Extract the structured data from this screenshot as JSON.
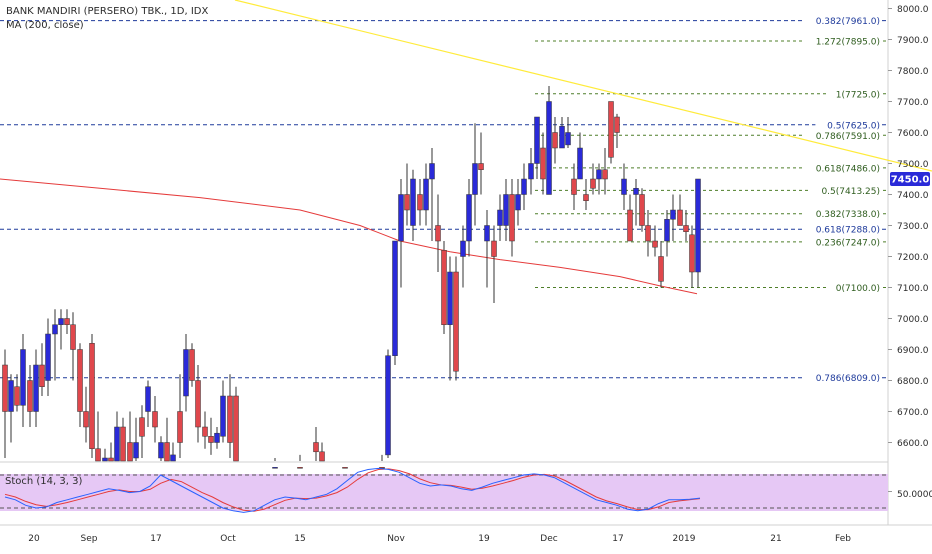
{
  "header": {
    "symbol_line": "BANK MANDIRI (PERSERO) TBK., 1D, IDX",
    "ma_line": "MA (200, close)"
  },
  "stoch": {
    "label": "Stoch (14, 3, 3)",
    "level_label": "50.0000",
    "range": [
      0,
      100
    ],
    "upper_band": 80,
    "lower_band": 20,
    "k": [
      40,
      35,
      25,
      20,
      22,
      30,
      35,
      40,
      45,
      50,
      55,
      52,
      48,
      50,
      60,
      80,
      70,
      60,
      50,
      40,
      30,
      20,
      15,
      12,
      15,
      25,
      35,
      40,
      38,
      35,
      40,
      45,
      55,
      70,
      85,
      90,
      92,
      90,
      85,
      75,
      65,
      60,
      62,
      60,
      55,
      52,
      58,
      65,
      70,
      75,
      80,
      82,
      80,
      75,
      65,
      55,
      45,
      35,
      30,
      25,
      18,
      15,
      18,
      28,
      35,
      35,
      36,
      38
    ],
    "d": [
      45,
      40,
      32,
      26,
      23,
      26,
      30,
      35,
      40,
      45,
      50,
      53,
      50,
      50,
      54,
      65,
      72,
      68,
      58,
      48,
      40,
      30,
      22,
      16,
      14,
      18,
      26,
      34,
      38,
      37,
      38,
      42,
      48,
      58,
      72,
      84,
      90,
      91,
      88,
      82,
      73,
      66,
      62,
      61,
      58,
      54,
      56,
      60,
      65,
      70,
      76,
      80,
      81,
      78,
      70,
      60,
      50,
      40,
      33,
      28,
      22,
      17,
      17,
      22,
      30,
      33,
      35,
      37
    ]
  },
  "chart_data": {
    "type": "candlestick",
    "title": "BANK MANDIRI (PERSERO) TBK., 1D, IDX",
    "indicator": "MA (200, close)",
    "ylim": [
      6500,
      8000
    ],
    "price_ticks": [
      "8000.0",
      "7900.0",
      "7800.0",
      "7700.0",
      "7600.0",
      "7500.0",
      "7400.0",
      "7300.0",
      "7200.0",
      "7100.0",
      "7000.0",
      "6900.0",
      "6800.0",
      "6700.0",
      "6600.0"
    ],
    "x_ticks": [
      "20",
      "Sep",
      "17",
      "Oct",
      "15",
      "Nov",
      "19",
      "Dec",
      "17",
      "2019",
      "21",
      "Feb"
    ],
    "last_price": "7450.0",
    "last_price_label": "7450.0",
    "fib_levels": [
      {
        "label": "0.382(7961.0)",
        "value": 7961,
        "style": "blue"
      },
      {
        "label": "1.272(7895.0)",
        "value": 7895,
        "style": "green"
      },
      {
        "label": "1(7725.0)",
        "value": 7725,
        "style": "green"
      },
      {
        "label": "0.5(7625.0)",
        "value": 7625,
        "style": "blue"
      },
      {
        "label": "0.786(7591.0)",
        "value": 7591,
        "style": "green"
      },
      {
        "label": "0.618(7486.0)",
        "value": 7486,
        "style": "green"
      },
      {
        "label": "0.5(7413.25)",
        "value": 7413.25,
        "style": "green"
      },
      {
        "label": "0.382(7338.0)",
        "value": 7338,
        "style": "green"
      },
      {
        "label": "0.618(7288.0)",
        "value": 7288,
        "style": "blue"
      },
      {
        "label": "0.236(7247.0)",
        "value": 7247,
        "style": "green"
      },
      {
        "label": "0(7100.0)",
        "value": 7100,
        "style": "green"
      },
      {
        "label": "0.786(6809.0)",
        "value": 6809,
        "style": "blue"
      }
    ],
    "trendline": {
      "from": [
        235,
        8000
      ],
      "to": [
        932,
        7450
      ]
    },
    "ma200": [
      [
        0,
        7450
      ],
      [
        100,
        7420
      ],
      [
        200,
        7390
      ],
      [
        300,
        7350
      ],
      [
        360,
        7300
      ],
      [
        400,
        7250
      ],
      [
        450,
        7215
      ],
      [
        500,
        7190
      ],
      [
        560,
        7165
      ],
      [
        620,
        7135
      ],
      [
        660,
        7105
      ],
      [
        697,
        7080
      ]
    ],
    "candles": [
      {
        "x": 5,
        "o": 6850,
        "h": 6900,
        "l": 6550,
        "c": 6700
      },
      {
        "x": 11,
        "o": 6700,
        "h": 6820,
        "l": 6600,
        "c": 6800
      },
      {
        "x": 17,
        "o": 6780,
        "h": 6820,
        "l": 6700,
        "c": 6720
      },
      {
        "x": 23,
        "o": 6720,
        "h": 6950,
        "l": 6650,
        "c": 6900
      },
      {
        "x": 30,
        "o": 6800,
        "h": 6850,
        "l": 6650,
        "c": 6700
      },
      {
        "x": 36,
        "o": 6700,
        "h": 6900,
        "l": 6650,
        "c": 6850
      },
      {
        "x": 42,
        "o": 6850,
        "h": 6920,
        "l": 6750,
        "c": 6780
      },
      {
        "x": 48,
        "o": 6800,
        "h": 7000,
        "l": 6750,
        "c": 6950
      },
      {
        "x": 55,
        "o": 6950,
        "h": 7030,
        "l": 6800,
        "c": 6980
      },
      {
        "x": 61,
        "o": 6980,
        "h": 7030,
        "l": 6900,
        "c": 7000
      },
      {
        "x": 67,
        "o": 7000,
        "h": 7030,
        "l": 6950,
        "c": 6980
      },
      {
        "x": 73,
        "o": 6980,
        "h": 7020,
        "l": 6800,
        "c": 6900
      },
      {
        "x": 80,
        "o": 6900,
        "h": 6920,
        "l": 6650,
        "c": 6700
      },
      {
        "x": 86,
        "o": 6700,
        "h": 6780,
        "l": 6600,
        "c": 6650
      },
      {
        "x": 92,
        "o": 6920,
        "h": 6950,
        "l": 6550,
        "c": 6580
      },
      {
        "x": 98,
        "o": 6580,
        "h": 6700,
        "l": 6500,
        "c": 6520
      },
      {
        "x": 105,
        "o": 6520,
        "h": 6580,
        "l": 6480,
        "c": 6550
      },
      {
        "x": 111,
        "o": 6550,
        "h": 6600,
        "l": 6450,
        "c": 6500
      },
      {
        "x": 117,
        "o": 6500,
        "h": 6700,
        "l": 6450,
        "c": 6650
      },
      {
        "x": 123,
        "o": 6650,
        "h": 6680,
        "l": 6450,
        "c": 6500
      },
      {
        "x": 130,
        "o": 6600,
        "h": 6700,
        "l": 6450,
        "c": 6500
      },
      {
        "x": 136,
        "o": 6550,
        "h": 6680,
        "l": 6500,
        "c": 6600
      },
      {
        "x": 142,
        "o": 6680,
        "h": 6720,
        "l": 6550,
        "c": 6620
      },
      {
        "x": 148,
        "o": 6700,
        "h": 6800,
        "l": 6650,
        "c": 6780
      },
      {
        "x": 155,
        "o": 6700,
        "h": 6750,
        "l": 6600,
        "c": 6650
      },
      {
        "x": 161,
        "o": 6550,
        "h": 6620,
        "l": 6480,
        "c": 6600
      },
      {
        "x": 167,
        "o": 6600,
        "h": 6680,
        "l": 6500,
        "c": 6520
      },
      {
        "x": 173,
        "o": 6520,
        "h": 6600,
        "l": 6480,
        "c": 6560
      },
      {
        "x": 180,
        "o": 6700,
        "h": 6820,
        "l": 6550,
        "c": 6600
      },
      {
        "x": 186,
        "o": 6750,
        "h": 6950,
        "l": 6700,
        "c": 6900
      },
      {
        "x": 192,
        "o": 6900,
        "h": 6920,
        "l": 6780,
        "c": 6800
      },
      {
        "x": 198,
        "o": 6800,
        "h": 6850,
        "l": 6600,
        "c": 6650
      },
      {
        "x": 205,
        "o": 6650,
        "h": 6700,
        "l": 6580,
        "c": 6620
      },
      {
        "x": 211,
        "o": 6620,
        "h": 6680,
        "l": 6560,
        "c": 6600
      },
      {
        "x": 217,
        "o": 6600,
        "h": 6650,
        "l": 6580,
        "c": 6630
      },
      {
        "x": 223,
        "o": 6620,
        "h": 6800,
        "l": 6600,
        "c": 6750
      },
      {
        "x": 230,
        "o": 6750,
        "h": 6820,
        "l": 6550,
        "c": 6600
      },
      {
        "x": 236,
        "o": 6750,
        "h": 6780,
        "l": 6480,
        "c": 6500
      },
      {
        "x": 275,
        "o": 6500,
        "h": 6550,
        "l": 6450,
        "c": 6520
      },
      {
        "x": 300,
        "o": 6520,
        "h": 6560,
        "l": 6480,
        "c": 6500
      },
      {
        "x": 316,
        "o": 6600,
        "h": 6650,
        "l": 6530,
        "c": 6570
      },
      {
        "x": 322,
        "o": 6570,
        "h": 6600,
        "l": 6500,
        "c": 6520
      },
      {
        "x": 345,
        "o": 6520,
        "h": 6540,
        "l": 6480,
        "c": 6500
      },
      {
        "x": 382,
        "o": 6520,
        "h": 6560,
        "l": 6480,
        "c": 6500
      },
      {
        "x": 388,
        "o": 6560,
        "h": 6900,
        "l": 6550,
        "c": 6880
      },
      {
        "x": 395,
        "o": 6880,
        "h": 7250,
        "l": 6850,
        "c": 7250
      },
      {
        "x": 401,
        "o": 7250,
        "h": 7450,
        "l": 7100,
        "c": 7400
      },
      {
        "x": 407,
        "o": 7400,
        "h": 7500,
        "l": 7300,
        "c": 7350
      },
      {
        "x": 413,
        "o": 7300,
        "h": 7480,
        "l": 7250,
        "c": 7450
      },
      {
        "x": 420,
        "o": 7400,
        "h": 7450,
        "l": 7300,
        "c": 7350
      },
      {
        "x": 426,
        "o": 7350,
        "h": 7500,
        "l": 7300,
        "c": 7450
      },
      {
        "x": 432,
        "o": 7450,
        "h": 7550,
        "l": 7250,
        "c": 7500
      },
      {
        "x": 438,
        "o": 7300,
        "h": 7400,
        "l": 7150,
        "c": 7250
      },
      {
        "x": 444,
        "o": 7220,
        "h": 7250,
        "l": 6950,
        "c": 6980
      },
      {
        "x": 450,
        "o": 6980,
        "h": 7200,
        "l": 6800,
        "c": 7150
      },
      {
        "x": 456,
        "o": 7150,
        "h": 7200,
        "l": 6800,
        "c": 6830
      },
      {
        "x": 463,
        "o": 7200,
        "h": 7300,
        "l": 7100,
        "c": 7250
      },
      {
        "x": 469,
        "o": 7250,
        "h": 7450,
        "l": 7200,
        "c": 7400
      },
      {
        "x": 475,
        "o": 7400,
        "h": 7630,
        "l": 7300,
        "c": 7500
      },
      {
        "x": 481,
        "o": 7500,
        "h": 7600,
        "l": 7400,
        "c": 7480
      },
      {
        "x": 487,
        "o": 7250,
        "h": 7350,
        "l": 7100,
        "c": 7300
      },
      {
        "x": 494,
        "o": 7250,
        "h": 7300,
        "l": 7050,
        "c": 7200
      },
      {
        "x": 500,
        "o": 7300,
        "h": 7400,
        "l": 7250,
        "c": 7350
      },
      {
        "x": 506,
        "o": 7300,
        "h": 7450,
        "l": 7250,
        "c": 7400
      },
      {
        "x": 512,
        "o": 7400,
        "h": 7450,
        "l": 7200,
        "c": 7250
      },
      {
        "x": 518,
        "o": 7350,
        "h": 7450,
        "l": 7300,
        "c": 7400
      },
      {
        "x": 524,
        "o": 7400,
        "h": 7500,
        "l": 7350,
        "c": 7450
      },
      {
        "x": 531,
        "o": 7450,
        "h": 7550,
        "l": 7400,
        "c": 7500
      },
      {
        "x": 537,
        "o": 7500,
        "h": 7650,
        "l": 7450,
        "c": 7650
      },
      {
        "x": 543,
        "o": 7550,
        "h": 7600,
        "l": 7400,
        "c": 7450
      },
      {
        "x": 549,
        "o": 7400,
        "h": 7750,
        "l": 7400,
        "c": 7700
      },
      {
        "x": 555,
        "o": 7600,
        "h": 7650,
        "l": 7500,
        "c": 7550
      },
      {
        "x": 562,
        "o": 7550,
        "h": 7650,
        "l": 7550,
        "c": 7620
      },
      {
        "x": 568,
        "o": 7560,
        "h": 7650,
        "l": 7550,
        "c": 7600
      },
      {
        "x": 574,
        "o": 7450,
        "h": 7500,
        "l": 7350,
        "c": 7400
      },
      {
        "x": 580,
        "o": 7450,
        "h": 7600,
        "l": 7450,
        "c": 7550
      },
      {
        "x": 586,
        "o": 7400,
        "h": 7450,
        "l": 7350,
        "c": 7380
      },
      {
        "x": 593,
        "o": 7450,
        "h": 7500,
        "l": 7400,
        "c": 7420
      },
      {
        "x": 599,
        "o": 7450,
        "h": 7500,
        "l": 7400,
        "c": 7480
      },
      {
        "x": 605,
        "o": 7480,
        "h": 7550,
        "l": 7400,
        "c": 7450
      },
      {
        "x": 611,
        "o": 7700,
        "h": 7700,
        "l": 7500,
        "c": 7520
      },
      {
        "x": 617,
        "o": 7650,
        "h": 7660,
        "l": 7550,
        "c": 7600
      },
      {
        "x": 624,
        "o": 7400,
        "h": 7500,
        "l": 7350,
        "c": 7450
      },
      {
        "x": 630,
        "o": 7350,
        "h": 7400,
        "l": 7250,
        "c": 7250
      },
      {
        "x": 636,
        "o": 7400,
        "h": 7450,
        "l": 7300,
        "c": 7420
      },
      {
        "x": 642,
        "o": 7400,
        "h": 7420,
        "l": 7280,
        "c": 7300
      },
      {
        "x": 648,
        "o": 7300,
        "h": 7350,
        "l": 7200,
        "c": 7250
      },
      {
        "x": 655,
        "o": 7250,
        "h": 7300,
        "l": 7200,
        "c": 7230
      },
      {
        "x": 661,
        "o": 7200,
        "h": 7250,
        "l": 7100,
        "c": 7120
      },
      {
        "x": 667,
        "o": 7250,
        "h": 7350,
        "l": 7200,
        "c": 7320
      },
      {
        "x": 673,
        "o": 7320,
        "h": 7400,
        "l": 7250,
        "c": 7350
      },
      {
        "x": 680,
        "o": 7350,
        "h": 7400,
        "l": 7300,
        "c": 7300
      },
      {
        "x": 686,
        "o": 7300,
        "h": 7350,
        "l": 7250,
        "c": 7280
      },
      {
        "x": 692,
        "o": 7270,
        "h": 7300,
        "l": 7100,
        "c": 7150
      },
      {
        "x": 698,
        "o": 7150,
        "h": 7450,
        "l": 7100,
        "c": 7450
      }
    ]
  },
  "colors": {
    "up": "#2a2ad8",
    "down": "#e0474c",
    "ma": "#e53b3b",
    "trend": "#ffeb3b",
    "fib_green": "#4f7f2a",
    "fib_blue": "#1e3a9b",
    "stoch_bg": "#e6c8f5",
    "stoch_k": "#2962ff",
    "stoch_d": "#e53b3b",
    "last_badge": "#2a2ad8"
  }
}
